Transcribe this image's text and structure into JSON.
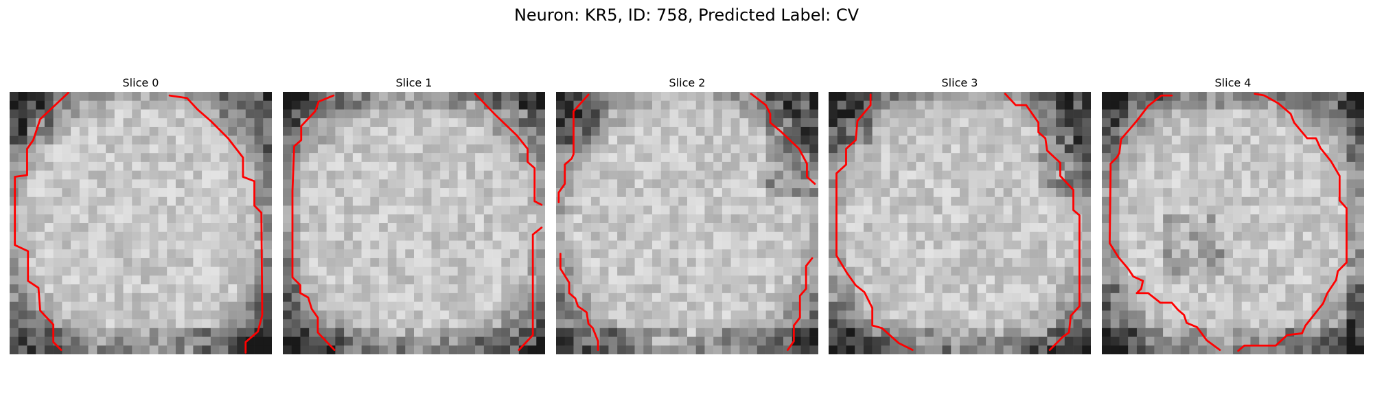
{
  "figure": {
    "title": "Neuron: KR5, ID: 758, Predicted Label: CV"
  },
  "contour_color": "#ff0000",
  "panels": [
    {
      "title": "Slice 0",
      "seed": 11,
      "dark_sides": [
        "left-top",
        "right",
        "bottom"
      ]
    },
    {
      "title": "Slice 1",
      "seed": 23,
      "dark_sides": [
        "top",
        "bottom",
        "left"
      ]
    },
    {
      "title": "Slice 2",
      "seed": 37,
      "dark_sides": [
        "left-top",
        "bottom",
        "right-top"
      ]
    },
    {
      "title": "Slice 3",
      "seed": 41,
      "dark_sides": [
        "left-top",
        "right-top",
        "bottom"
      ]
    },
    {
      "title": "Slice 4",
      "seed": 59,
      "dark_sides": [
        "top",
        "right",
        "bottom",
        "left",
        "center"
      ]
    }
  ]
}
